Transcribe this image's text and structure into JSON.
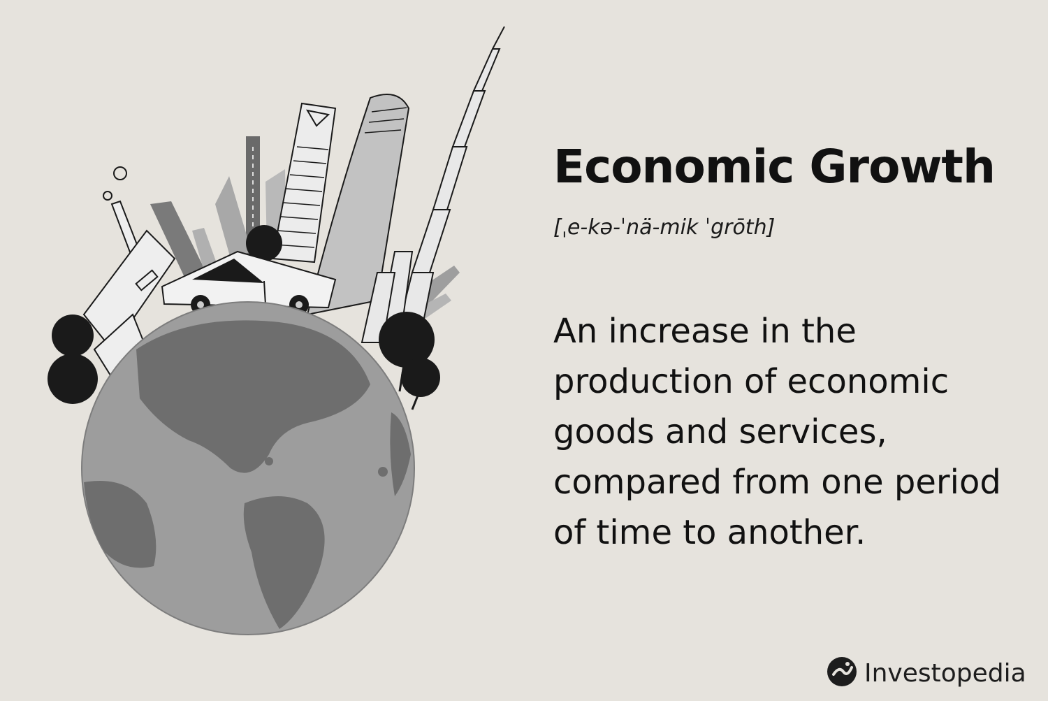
{
  "heading": {
    "title": "Economic Growth",
    "pronunciation": "[ˌe-kə-ˈnä-mik ˈgrōth]"
  },
  "definition": {
    "text": "An increase in the production of economic goods and services, compared from one period of time to another."
  },
  "brand": {
    "name": "Investopedia",
    "icon": "investopedia-logo-icon"
  },
  "illustration": {
    "icon": "globe-city-illustration",
    "colors": {
      "background": "#e6e3dd",
      "globe_water": "#9d9d9d",
      "globe_land": "#6e6e6e",
      "ink": "#1a1a1a"
    }
  }
}
